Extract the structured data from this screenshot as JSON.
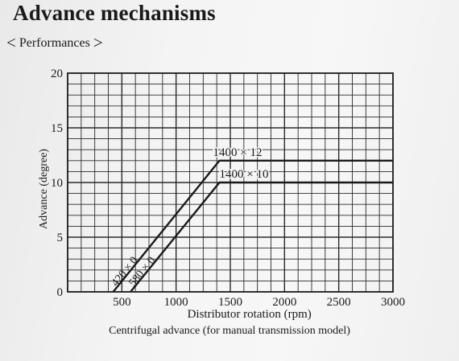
{
  "page": {
    "title": "Advance mechanisms",
    "subtitle_left": "<",
    "subtitle": "Performances",
    "subtitle_right": ">",
    "caption": "Centrifugal advance (for manual transmission model)"
  },
  "chart_data": {
    "type": "line",
    "xlabel": "Distributor rotation (rpm)",
    "ylabel": "Advance (degree)",
    "xlim": [
      0,
      3000
    ],
    "ylim": [
      0,
      20
    ],
    "x_ticks": [
      "500",
      "1000",
      "1500",
      "2000",
      "2500",
      "3000"
    ],
    "y_ticks": [
      "0",
      "5",
      "10",
      "15",
      "20"
    ],
    "grid": true,
    "series": [
      {
        "x": [
          420,
          1400,
          3000
        ],
        "y": [
          0,
          12,
          12
        ]
      },
      {
        "x": [
          580,
          1400,
          3000
        ],
        "y": [
          0,
          10,
          10
        ]
      }
    ],
    "annotations": [
      {
        "text": "420 × 0",
        "x": 420,
        "y": 0
      },
      {
        "text": "580 × 0",
        "x": 580,
        "y": 0
      },
      {
        "text": "1400 × 12",
        "x": 1400,
        "y": 12
      },
      {
        "text": "1400 × 10",
        "x": 1400,
        "y": 10
      }
    ],
    "colors": {
      "ink": "#1a1a1a",
      "grid": "#2a2a2a"
    }
  }
}
